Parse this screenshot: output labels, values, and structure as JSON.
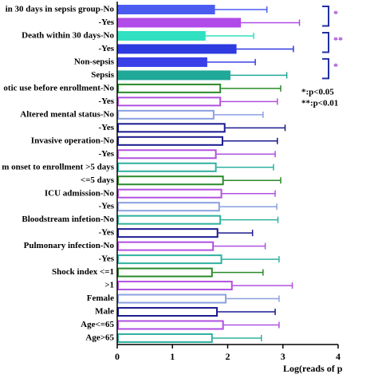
{
  "chart_data": {
    "type": "bar",
    "orientation": "horizontal",
    "categories": [
      "in 30 days in sepsis group-No",
      "-Yes",
      "Death within 30 days-No",
      "-Yes",
      "Non-sepsis",
      "Sepsis",
      "otic use before enrollment-No",
      "-Yes",
      "Altered mental status-No",
      "-Yes",
      "Invasive operation-No",
      "-Yes",
      "m onset to enrollment >5 days",
      "<=5 days",
      "ICU admission-No",
      "-Yes",
      "Bloodstream infetion-No",
      "-Yes",
      "Pulmonary infection-No",
      "-Yes",
      "Shock index <=1",
      ">1",
      "Female",
      "Male",
      "Age<=65",
      "Age>65"
    ],
    "values": [
      1.77,
      2.24,
      1.6,
      2.16,
      1.63,
      2.05,
      1.88,
      1.88,
      1.76,
      1.96,
      1.92,
      1.8,
      1.8,
      1.93,
      1.9,
      1.86,
      1.88,
      1.83,
      1.75,
      1.9,
      1.73,
      2.09,
      1.98,
      1.82,
      1.93,
      1.73
    ],
    "errors": [
      0.94,
      1.06,
      0.87,
      1.03,
      0.87,
      1.02,
      1.08,
      1.02,
      0.88,
      1.08,
      0.98,
      1.06,
      1.03,
      1.03,
      0.96,
      1.03,
      1.03,
      0.62,
      0.93,
      1.03,
      0.91,
      1.08,
      0.95,
      1.04,
      1.0,
      0.88
    ],
    "colors": [
      "#4a5cf0",
      "#b04ae8",
      "#30e0c0",
      "#2c3ae0",
      "#3a40e8",
      "#20a898",
      "#2a8a2a",
      "#b050e0",
      "#8aa0e0",
      "#1a1a90",
      "#1a1a90",
      "#b050e0",
      "#30b0a0",
      "#2a8a2a",
      "#b050e0",
      "#8aa0e0",
      "#30b0a0",
      "#1a1a90",
      "#b050e0",
      "#30b0a0",
      "#2a8a2a",
      "#b050e0",
      "#8aa0e0",
      "#1a1a90",
      "#b050e0",
      "#30b0a0"
    ],
    "filled": [
      true,
      true,
      true,
      true,
      true,
      true,
      false,
      false,
      false,
      false,
      false,
      false,
      false,
      false,
      false,
      false,
      false,
      false,
      false,
      false,
      false,
      false,
      false,
      false,
      false,
      false
    ],
    "xlim": [
      0,
      4
    ],
    "xticks": [
      0,
      1,
      2,
      3,
      4
    ],
    "x_label": "Log(reads of p",
    "annotations": [
      "*",
      "**",
      "*"
    ],
    "legend_text": [
      "*:p<0.05",
      "**:p<0.01"
    ]
  }
}
